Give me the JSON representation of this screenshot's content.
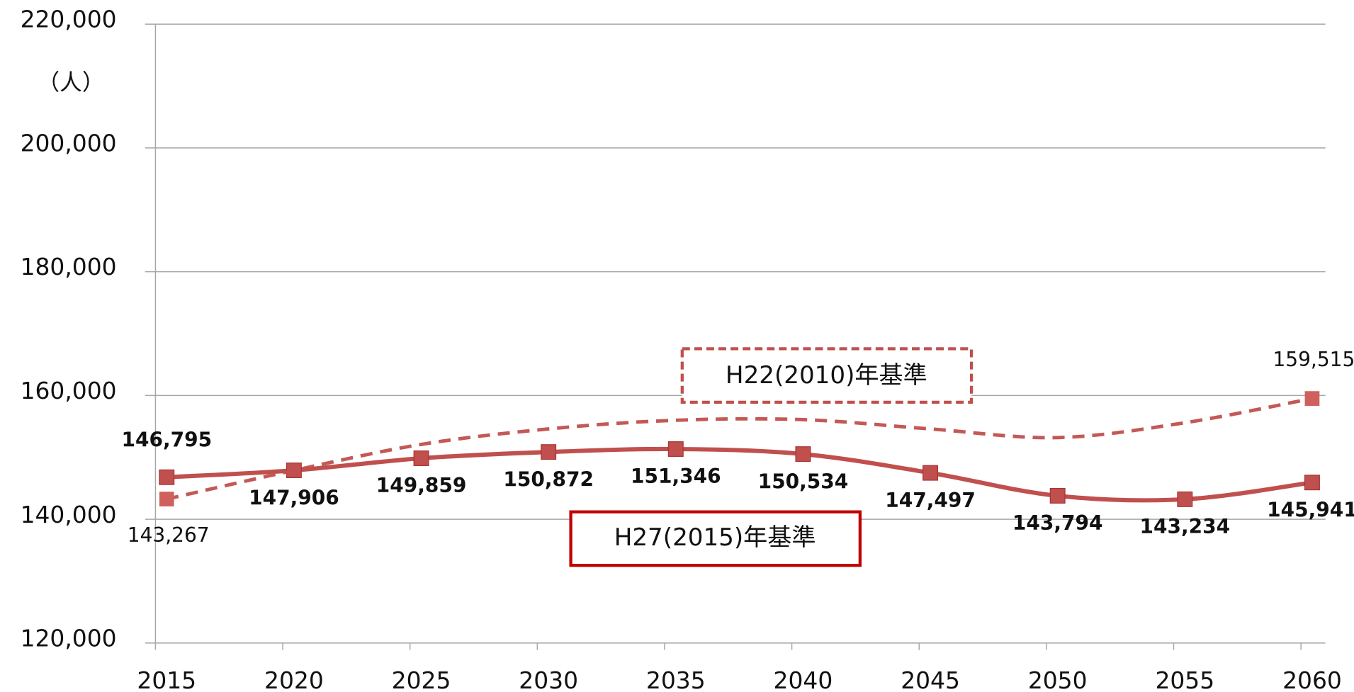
{
  "chart_data": {
    "type": "line",
    "y_axis_unit": "（人）",
    "categories": [
      "2015",
      "2020",
      "2025",
      "2030",
      "2035",
      "2040",
      "2045",
      "2050",
      "2055",
      "2060"
    ],
    "ylim": [
      120000,
      220000
    ],
    "yticks": [
      {
        "value": 120000,
        "label": "120,000"
      },
      {
        "value": 140000,
        "label": "140,000"
      },
      {
        "value": 160000,
        "label": "160,000"
      },
      {
        "value": 180000,
        "label": "180,000"
      },
      {
        "value": 200000,
        "label": "200,000"
      },
      {
        "value": 220000,
        "label": "220,000"
      }
    ],
    "grid": true,
    "series": [
      {
        "name": "H27(2015)年基準",
        "color": "#c0504d",
        "line_style": "solid",
        "values": [
          146795,
          147906,
          149859,
          150872,
          151346,
          150534,
          147497,
          143794,
          143234,
          145941
        ],
        "value_labels": [
          "146,795",
          "147,906",
          "149,859",
          "150,872",
          "151,346",
          "150,534",
          "147,497",
          "143,794",
          "143,234",
          "145,941"
        ]
      },
      {
        "name": "H22(2010)年基準",
        "color": "#c0504d",
        "line_style": "dashed",
        "values": [
          143267,
          147900,
          152100,
          154600,
          156000,
          156100,
          154600,
          153200,
          155600,
          159515
        ],
        "value_labels": [
          "143,267",
          null,
          null,
          null,
          null,
          null,
          null,
          null,
          null,
          "159,515"
        ]
      }
    ]
  }
}
